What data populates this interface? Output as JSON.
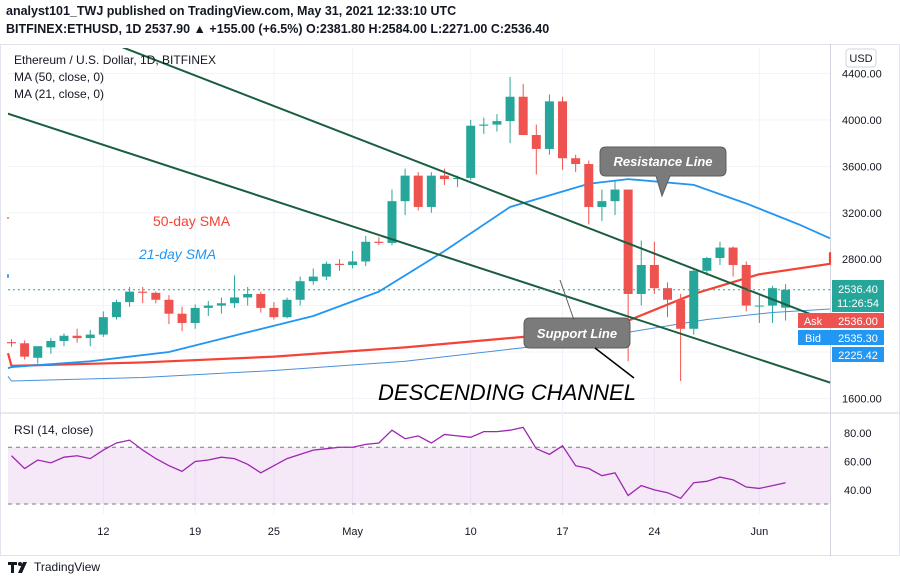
{
  "header": {
    "line1": "analyst101_TWJ published on TradingView.com, May 31, 2021 12:33:10 UTC",
    "line2": "BITFINEX:ETHUSD, 1D 2537.90 ▲ +155.00 (+6.5%) O:2381.80 H:2584.00 L:2271.00 C:2536.40"
  },
  "legend": {
    "title": "Ethereum / U.S. Dollar, 1D, BITFINEX",
    "ma50": "MA (50, close, 0)",
    "ma21": "MA (21, close, 0)",
    "rsi": "RSI (14, close)"
  },
  "currency": "USD",
  "footer": {
    "brand": "TradingView"
  },
  "colors": {
    "up": "#26a69a",
    "down": "#ef5350",
    "ma50": "#f44336",
    "ma21": "#2196f3",
    "channel": "#1b5e3f",
    "rsi": "#9c27b0"
  },
  "chart_data": [
    {
      "type": "candlestick",
      "title": "Ethereum / U.S. Dollar, 1D, BITFINEX",
      "x_start": "2021-04-05",
      "x_ticks": [
        "12",
        "19",
        "25",
        "May",
        "10",
        "17",
        "24",
        "Jun"
      ],
      "ylim": [
        1500,
        4620
      ],
      "y_ticks": [
        1600,
        2000,
        2400,
        2800,
        3200,
        3600,
        4000,
        4400
      ],
      "ohlc": [
        [
          2085,
          2110,
          2045,
          2075
        ],
        [
          2075,
          2100,
          1935,
          1960
        ],
        [
          1950,
          2030,
          1900,
          2050
        ],
        [
          2040,
          2120,
          1985,
          2095
        ],
        [
          2095,
          2160,
          2050,
          2140
        ],
        [
          2140,
          2200,
          2080,
          2120
        ],
        [
          2120,
          2190,
          2050,
          2150
        ],
        [
          2150,
          2350,
          2130,
          2300
        ],
        [
          2300,
          2450,
          2280,
          2430
        ],
        [
          2430,
          2560,
          2390,
          2520
        ],
        [
          2520,
          2560,
          2420,
          2510
        ],
        [
          2510,
          2520,
          2420,
          2450
        ],
        [
          2450,
          2490,
          2240,
          2330
        ],
        [
          2330,
          2390,
          2180,
          2250
        ],
        [
          2250,
          2410,
          2200,
          2380
        ],
        [
          2380,
          2440,
          2310,
          2400
        ],
        [
          2400,
          2470,
          2330,
          2420
        ],
        [
          2420,
          2660,
          2380,
          2470
        ],
        [
          2470,
          2560,
          2400,
          2500
        ],
        [
          2500,
          2520,
          2340,
          2380
        ],
        [
          2380,
          2430,
          2280,
          2300
        ],
        [
          2300,
          2470,
          2290,
          2450
        ],
        [
          2450,
          2650,
          2400,
          2610
        ],
        [
          2610,
          2720,
          2580,
          2650
        ],
        [
          2650,
          2780,
          2620,
          2760
        ],
        [
          2760,
          2800,
          2700,
          2750
        ],
        [
          2750,
          2870,
          2720,
          2780
        ],
        [
          2780,
          3000,
          2740,
          2950
        ],
        [
          2950,
          2990,
          2920,
          2940
        ],
        [
          2940,
          3400,
          2920,
          3300
        ],
        [
          3300,
          3580,
          3180,
          3520
        ],
        [
          3520,
          3550,
          3220,
          3250
        ],
        [
          3250,
          3550,
          3200,
          3520
        ],
        [
          3520,
          3580,
          3440,
          3490
        ],
        [
          3490,
          3520,
          3420,
          3500
        ],
        [
          3500,
          4000,
          3480,
          3950
        ],
        [
          3950,
          4020,
          3880,
          3960
        ],
        [
          3960,
          4050,
          3900,
          3990
        ],
        [
          3990,
          4370,
          3800,
          4200
        ],
        [
          4200,
          4310,
          3870,
          3870
        ],
        [
          3870,
          3960,
          3530,
          3750
        ],
        [
          3750,
          4220,
          3700,
          4160
        ],
        [
          4160,
          4200,
          3570,
          3670
        ],
        [
          3670,
          3700,
          3550,
          3620
        ],
        [
          3620,
          3650,
          3100,
          3250
        ],
        [
          3250,
          3400,
          3130,
          3300
        ],
        [
          3300,
          3470,
          3180,
          3400
        ],
        [
          3400,
          3400,
          1920,
          2500
        ],
        [
          2500,
          2960,
          2400,
          2750
        ],
        [
          2750,
          2950,
          2500,
          2550
        ],
        [
          2550,
          2600,
          2300,
          2450
        ],
        [
          2450,
          2500,
          1750,
          2200
        ],
        [
          2200,
          2720,
          2150,
          2700
        ],
        [
          2700,
          2820,
          2660,
          2810
        ],
        [
          2810,
          2950,
          2750,
          2900
        ],
        [
          2900,
          2910,
          2650,
          2750
        ],
        [
          2750,
          2780,
          2350,
          2400
        ],
        [
          2400,
          2500,
          2250,
          2400
        ],
        [
          2400,
          2570,
          2250,
          2550
        ],
        [
          2381.8,
          2584,
          2271,
          2536.4
        ]
      ],
      "ma50": [
        [
          -80,
          3150
        ],
        [
          -58,
          3160
        ],
        [
          -55,
          1990
        ],
        [
          0,
          1880
        ],
        [
          10,
          1910
        ],
        [
          20,
          1960
        ],
        [
          30,
          2040
        ],
        [
          40,
          2140
        ],
        [
          47,
          2270
        ],
        [
          52,
          2500
        ],
        [
          57,
          2670
        ],
        [
          63,
          2760
        ],
        [
          69,
          2830
        ],
        [
          74,
          2860
        ]
      ],
      "ma21": [
        [
          -80,
          2640
        ],
        [
          -58,
          2670
        ],
        [
          -55,
          1860
        ],
        [
          0,
          1870
        ],
        [
          6,
          1920
        ],
        [
          12,
          2000
        ],
        [
          18,
          2170
        ],
        [
          23,
          2310
        ],
        [
          28,
          2520
        ],
        [
          33,
          2870
        ],
        [
          38,
          3250
        ],
        [
          44,
          3450
        ],
        [
          47,
          3490
        ],
        [
          52,
          3440
        ],
        [
          56,
          3280
        ],
        [
          60,
          3100
        ],
        [
          64,
          2980
        ]
      ],
      "thin_ma": [
        [
          -55,
          1790
        ],
        [
          0,
          1750
        ],
        [
          10,
          1780
        ],
        [
          20,
          1840
        ],
        [
          30,
          1920
        ],
        [
          40,
          2050
        ],
        [
          47,
          2170
        ],
        [
          53,
          2280
        ],
        [
          58,
          2340
        ],
        [
          64,
          2370
        ]
      ],
      "channel_lines": [
        [
          [
            7,
            4690
          ],
          [
            72,
            1840
          ]
        ],
        [
          [
            -8,
            4340
          ],
          [
            65,
            1640
          ]
        ]
      ],
      "annotations": [
        {
          "text": "50-day SMA",
          "color": "#f44336"
        },
        {
          "text": "21-day SMA",
          "color": "#2196f3"
        },
        {
          "text": "Resistance Line",
          "color": "#ffffff"
        },
        {
          "text": "Support Line",
          "color": "#ffffff"
        },
        {
          "text": "DESCENDING CHANNEL",
          "color": "#000000"
        }
      ],
      "price_labels": [
        {
          "text": "2536.40",
          "color": "#26a69a"
        },
        {
          "text": "11:26:54",
          "color": "#26a69a"
        },
        {
          "text": "Ask",
          "color": "#ef5350"
        },
        {
          "text": "2536.00",
          "color": "#ef5350"
        },
        {
          "text": "Bid",
          "color": "#2196f3"
        },
        {
          "text": "2535.30",
          "color": "#2196f3"
        },
        {
          "text": "2225.42",
          "color": "#2196f3"
        }
      ]
    },
    {
      "type": "line",
      "title": "RSI (14, close)",
      "ylim": [
        23,
        92
      ],
      "y_ticks": [
        40,
        60,
        80
      ],
      "band": [
        30,
        70
      ],
      "values": [
        64,
        55,
        61,
        59,
        63,
        64,
        62,
        68,
        73,
        75,
        68,
        62,
        57,
        53,
        60,
        61,
        63,
        62,
        58,
        52,
        57,
        62,
        65,
        68,
        69,
        70,
        70,
        72,
        73,
        82,
        76,
        78,
        73,
        79,
        78,
        77,
        81,
        81,
        82,
        84,
        69,
        65,
        71,
        57,
        55,
        50,
        52,
        36,
        43,
        40,
        38,
        34,
        45,
        46,
        49,
        47,
        42,
        41,
        43,
        45
      ]
    }
  ]
}
